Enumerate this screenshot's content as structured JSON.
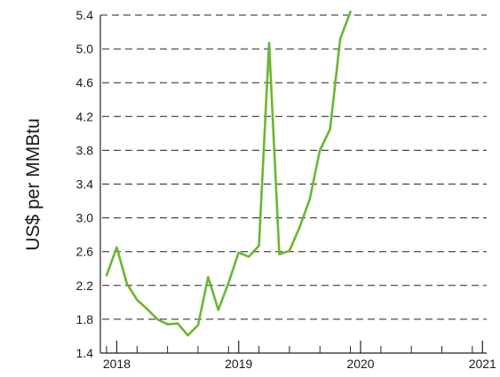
{
  "chart_data": {
    "type": "line",
    "title": "",
    "xlabel": "",
    "ylabel": "US$ per MMBtu",
    "ylim": [
      1.4,
      5.4
    ],
    "y_ticks": [
      "1.4",
      "1.8",
      "2.2",
      "2.6",
      "3.0",
      "3.4",
      "3.8",
      "4.2",
      "4.6",
      "5.0",
      "5.4"
    ],
    "x_ticks": [
      "2018",
      "2019",
      "2020",
      "2021"
    ],
    "grid": "horizontal dashed",
    "line_color": "#6ab72f",
    "series": [
      {
        "x": [
          "2017-12",
          "2018-01",
          "2018-02",
          "2018-03",
          "2018-04",
          "2018-05",
          "2018-06",
          "2018-07",
          "2018-08",
          "2018-09",
          "2018-10",
          "2018-11",
          "2018-12",
          "2019-01",
          "2019-02",
          "2019-03",
          "2019-04",
          "2019-05",
          "2019-06",
          "2019-07",
          "2019-08",
          "2019-09",
          "2019-10",
          "2019-11",
          "2019-12",
          "2020-01",
          "2020-02",
          "2020-03",
          "2020-04",
          "2020-05",
          "2020-06",
          "2020-07",
          "2020-08"
        ],
        "values": [
          2.32,
          2.65,
          2.22,
          2.03,
          1.92,
          1.8,
          1.74,
          1.75,
          1.61,
          1.73,
          2.3,
          1.91,
          2.23,
          2.59,
          2.54,
          2.67,
          5.07,
          2.57,
          2.61,
          2.89,
          3.22,
          3.8,
          4.05,
          5.12,
          5.44,
          null,
          null,
          null,
          null,
          null,
          null,
          null,
          null
        ]
      }
    ]
  }
}
